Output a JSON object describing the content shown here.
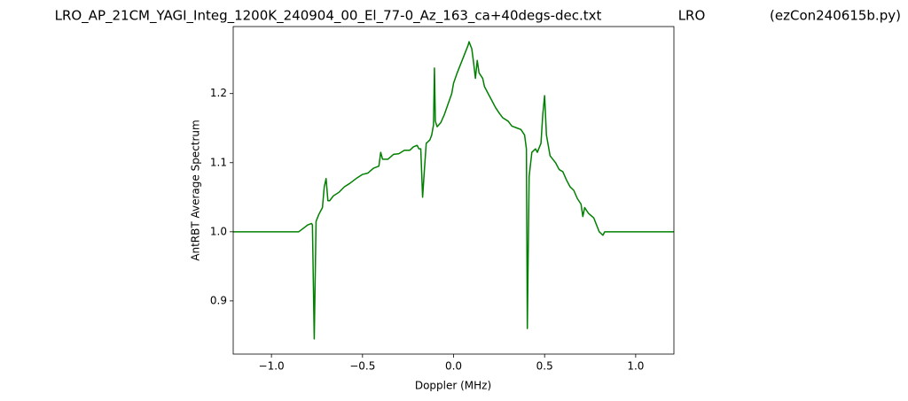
{
  "chart_data": {
    "type": "line",
    "title_parts": [
      "LRO_AP_21CM_YAGI_Integ_1200K_240904_00_El_77-0_Az_163_ca+40degs-dec.txt",
      "LRO",
      "(ezCon240615b.py)"
    ],
    "xlabel": "Doppler (MHz)",
    "ylabel": "AntRBT Average Spectrum",
    "x": [
      -1.21,
      -0.85,
      -0.8,
      -0.78,
      -0.775,
      -0.765,
      -0.755,
      -0.74,
      -0.72,
      -0.71,
      -0.7,
      -0.69,
      -0.68,
      -0.66,
      -0.63,
      -0.6,
      -0.57,
      -0.53,
      -0.5,
      -0.47,
      -0.44,
      -0.41,
      -0.4,
      -0.39,
      -0.36,
      -0.33,
      -0.3,
      -0.27,
      -0.24,
      -0.22,
      -0.2,
      -0.19,
      -0.18,
      -0.17,
      -0.16,
      -0.15,
      -0.13,
      -0.12,
      -0.11,
      -0.105,
      -0.1,
      -0.09,
      -0.07,
      -0.05,
      -0.03,
      -0.01,
      0.0,
      0.02,
      0.05,
      0.08,
      0.085,
      0.1,
      0.11,
      0.12,
      0.13,
      0.14,
      0.16,
      0.17,
      0.19,
      0.21,
      0.23,
      0.25,
      0.27,
      0.3,
      0.32,
      0.35,
      0.37,
      0.39,
      0.4,
      0.405,
      0.415,
      0.43,
      0.45,
      0.46,
      0.48,
      0.49,
      0.5,
      0.51,
      0.53,
      0.56,
      0.58,
      0.6,
      0.62,
      0.64,
      0.66,
      0.68,
      0.7,
      0.71,
      0.72,
      0.74,
      0.77,
      0.8,
      0.82,
      0.83,
      1.21
    ],
    "series": [
      {
        "color": "#008000",
        "values": [
          1.0,
          1.0,
          1.01,
          1.012,
          1.01,
          0.845,
          1.015,
          1.025,
          1.035,
          1.065,
          1.077,
          1.045,
          1.045,
          1.052,
          1.057,
          1.065,
          1.07,
          1.078,
          1.083,
          1.085,
          1.092,
          1.095,
          1.115,
          1.105,
          1.105,
          1.112,
          1.113,
          1.118,
          1.118,
          1.123,
          1.125,
          1.12,
          1.12,
          1.05,
          1.09,
          1.128,
          1.133,
          1.14,
          1.155,
          1.237,
          1.16,
          1.152,
          1.158,
          1.17,
          1.185,
          1.2,
          1.215,
          1.23,
          1.25,
          1.27,
          1.275,
          1.265,
          1.245,
          1.222,
          1.248,
          1.23,
          1.222,
          1.21,
          1.2,
          1.19,
          1.18,
          1.172,
          1.165,
          1.16,
          1.153,
          1.15,
          1.148,
          1.14,
          1.12,
          0.86,
          1.08,
          1.115,
          1.12,
          1.115,
          1.128,
          1.17,
          1.197,
          1.14,
          1.11,
          1.1,
          1.09,
          1.087,
          1.075,
          1.065,
          1.06,
          1.048,
          1.04,
          1.022,
          1.035,
          1.027,
          1.02,
          1.0,
          0.995,
          1.0,
          1.0
        ]
      }
    ],
    "xlim": [
      -1.21,
      1.21
    ],
    "ylim": [
      0.823,
      1.297
    ],
    "xticks": [
      {
        "value": -1.0,
        "label": "−1.0"
      },
      {
        "value": -0.5,
        "label": "−0.5"
      },
      {
        "value": 0.0,
        "label": "0.0"
      },
      {
        "value": 0.5,
        "label": "0.5"
      },
      {
        "value": 1.0,
        "label": "1.0"
      }
    ],
    "yticks": [
      0.9,
      {
        "value": 1.0,
        "label": "1.0"
      },
      1.1,
      1.2
    ],
    "grid": false
  }
}
